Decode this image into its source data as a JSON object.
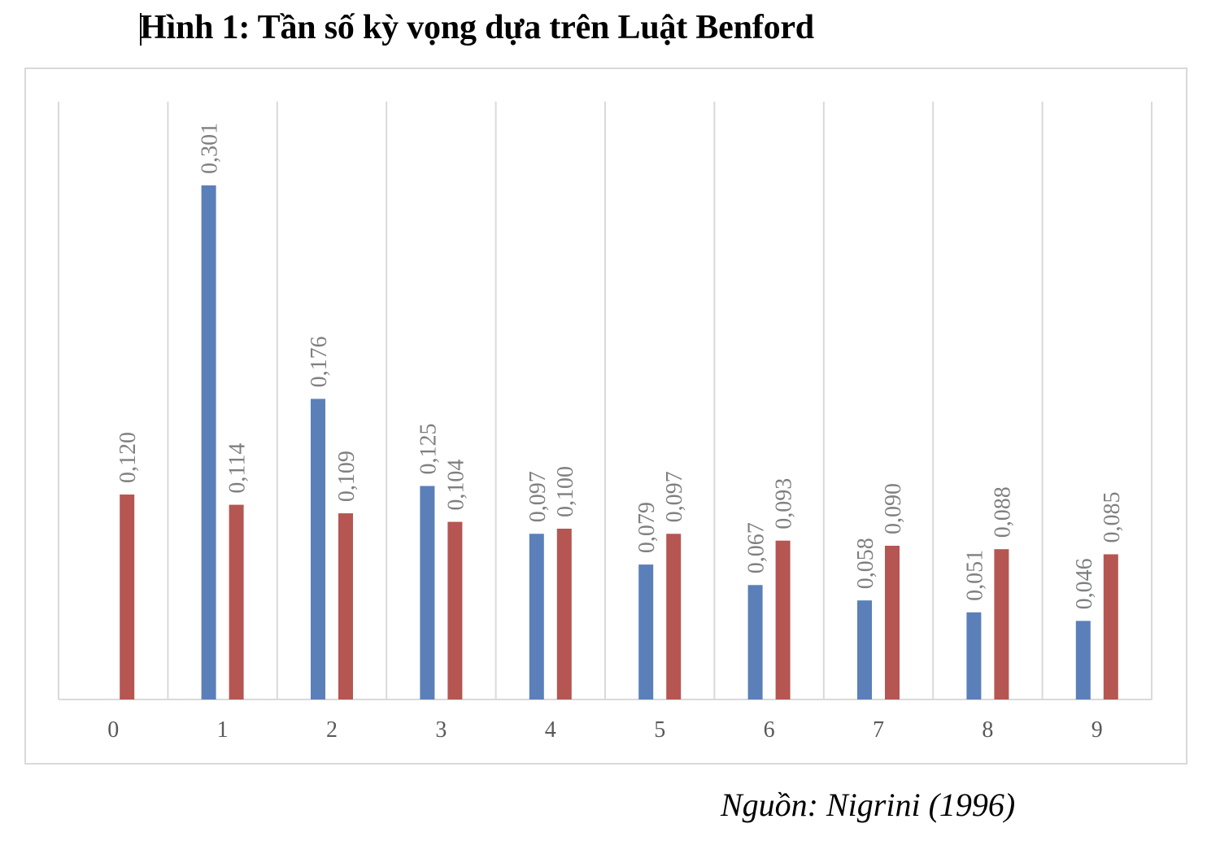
{
  "heading": "Hình 1: Tần số kỳ vọng dựa trên Luật Benford",
  "source": "Nguồn:  Nigrini (1996)",
  "chart_data": {
    "type": "bar",
    "title": "",
    "xlabel": "",
    "ylabel": "",
    "categories": [
      "0",
      "1",
      "2",
      "3",
      "4",
      "5",
      "6",
      "7",
      "8",
      "9"
    ],
    "series": [
      {
        "color": "#5b7fb9",
        "values": [
          null,
          0.301,
          0.176,
          0.125,
          0.097,
          0.079,
          0.067,
          0.058,
          0.051,
          0.046
        ],
        "labels": [
          "",
          "0,301",
          "0,176",
          "0,125",
          "0,097",
          "0,079",
          "0,067",
          "0,058",
          "0,051",
          "0,046"
        ]
      },
      {
        "color": "#b55652",
        "values": [
          0.12,
          0.114,
          0.109,
          0.104,
          0.1,
          0.097,
          0.093,
          0.09,
          0.088,
          0.085
        ],
        "labels": [
          "0,120",
          "0,114",
          "0,109",
          "0,104",
          "0,100",
          "0,097",
          "0,093",
          "0,090",
          "0,088",
          "0,085"
        ]
      }
    ],
    "ylim": [
      0,
      0.35
    ],
    "grid": "vertical separators between categories",
    "legend": "none"
  }
}
